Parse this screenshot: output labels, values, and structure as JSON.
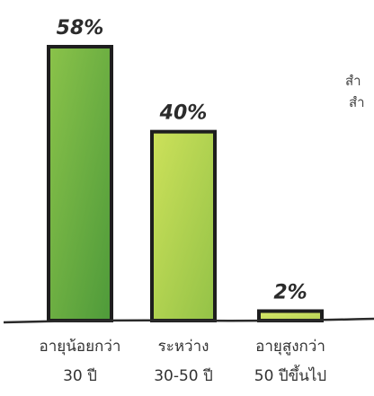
{
  "chart_data": {
    "type": "bar",
    "categories": [
      [
        "อายุน้อยกว่า",
        "30 ปี"
      ],
      [
        "ระหว่าง",
        "30-50 ปี"
      ],
      [
        "อายุสูงกว่า",
        "50 ปีขึ้นไป"
      ]
    ],
    "values": [
      58,
      40,
      2
    ],
    "value_labels": [
      "58%",
      "40%",
      "2%"
    ],
    "ylim": [
      0,
      58
    ],
    "grid": false,
    "bar_colors": [
      [
        "#8bc34a",
        "#4e9a3a"
      ],
      [
        "#cde15a",
        "#93c247"
      ],
      [
        "#d9e86a",
        "#b7d355"
      ]
    ],
    "outline_color": "#1e1e1e",
    "side_text": [
      "สำ",
      "สำ"
    ]
  }
}
